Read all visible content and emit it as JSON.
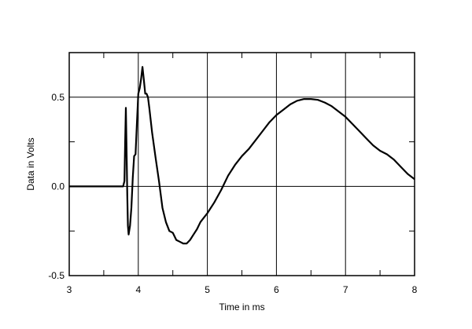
{
  "chart_data": {
    "type": "line",
    "title": "",
    "xlabel": "Time in ms",
    "ylabel": "Data in Volts",
    "xlim": [
      3,
      8
    ],
    "ylim": [
      -0.5,
      0.75
    ],
    "x_ticks": [
      3,
      4,
      5,
      6,
      7,
      8
    ],
    "x_tick_labels": [
      "3",
      "4",
      "5",
      "6",
      "7",
      "8"
    ],
    "y_ticks": [
      -0.5,
      0.0,
      0.5
    ],
    "y_tick_labels": [
      "-0.5",
      "0.0",
      "0.5"
    ],
    "y_minor_ticks": [
      -0.25,
      0.25
    ],
    "x_minor_ticks": [
      3.5,
      4.5,
      5.5,
      6.5,
      7.5
    ],
    "grid": true,
    "line_color": "#000000",
    "series": [
      {
        "x": [
          3.0,
          3.5,
          3.78,
          3.8,
          3.81,
          3.82,
          3.83,
          3.84,
          3.85,
          3.86,
          3.88,
          3.9,
          3.92,
          3.94,
          3.96,
          3.98,
          4.0,
          4.02,
          4.04,
          4.06,
          4.08,
          4.1,
          4.12,
          4.14,
          4.16,
          4.2,
          4.25,
          4.3,
          4.35,
          4.4,
          4.45,
          4.5,
          4.55,
          4.6,
          4.65,
          4.7,
          4.75,
          4.8,
          4.85,
          4.9,
          5.0,
          5.1,
          5.2,
          5.3,
          5.4,
          5.5,
          5.6,
          5.7,
          5.8,
          5.9,
          6.0,
          6.1,
          6.2,
          6.3,
          6.4,
          6.5,
          6.6,
          6.7,
          6.8,
          6.9,
          7.0,
          7.1,
          7.2,
          7.3,
          7.4,
          7.5,
          7.6,
          7.7,
          7.8,
          7.9,
          8.0
        ],
        "y": [
          0.0,
          0.0,
          0.0,
          0.03,
          0.25,
          0.44,
          0.2,
          -0.05,
          -0.22,
          -0.27,
          -0.22,
          -0.12,
          0.05,
          0.17,
          0.18,
          0.35,
          0.52,
          0.55,
          0.6,
          0.67,
          0.6,
          0.52,
          0.52,
          0.5,
          0.44,
          0.3,
          0.16,
          0.03,
          -0.12,
          -0.2,
          -0.25,
          -0.26,
          -0.3,
          -0.31,
          -0.32,
          -0.32,
          -0.3,
          -0.27,
          -0.24,
          -0.2,
          -0.15,
          -0.09,
          -0.02,
          0.06,
          0.12,
          0.17,
          0.21,
          0.26,
          0.31,
          0.36,
          0.4,
          0.43,
          0.46,
          0.48,
          0.49,
          0.49,
          0.485,
          0.47,
          0.45,
          0.42,
          0.39,
          0.35,
          0.31,
          0.27,
          0.23,
          0.2,
          0.18,
          0.15,
          0.11,
          0.07,
          0.04
        ]
      }
    ]
  }
}
